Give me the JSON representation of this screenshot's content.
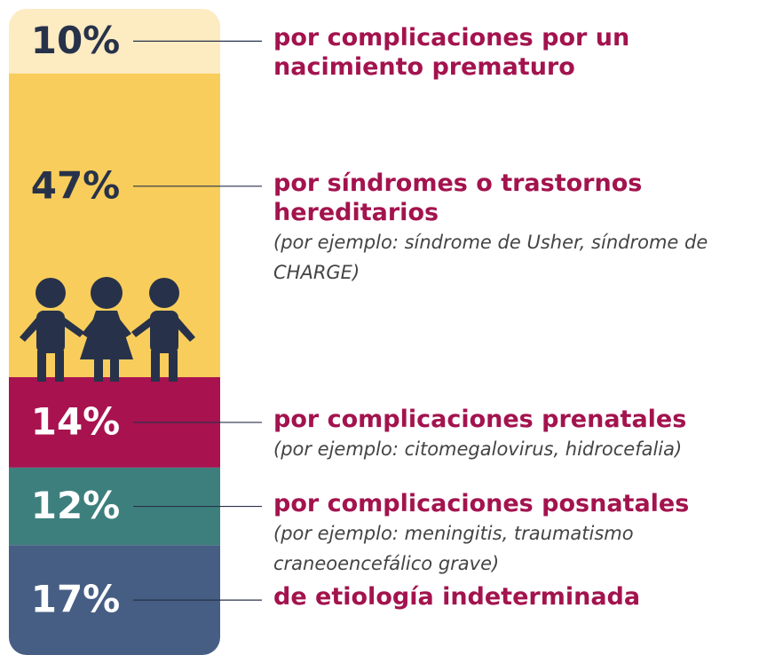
{
  "chart_data": {
    "type": "stacked-bar",
    "ylim": [
      0,
      100
    ],
    "series": [
      {
        "name": "por complicaciones por un nacimiento prematuro",
        "color": "#fdebc2",
        "values": [
          10
        ],
        "value_labels": [
          "10%"
        ]
      },
      {
        "name": "por síndromes o trastornos hereditarios",
        "detail": "(por ejemplo: síndrome de Usher, síndrome de CHARGE)",
        "color": "#f9cd5b",
        "values": [
          47
        ],
        "value_labels": [
          "47%"
        ]
      },
      {
        "name": "por complicaciones prenatales",
        "detail": "(por ejemplo: citomegalovirus, hidrocefalia)",
        "color": "#a8124f",
        "values": [
          14
        ],
        "value_labels": [
          "14%"
        ]
      },
      {
        "name": "por complicaciones posnatales",
        "detail": "(por ejemplo: meningitis, traumatismo craneoencefálico grave)",
        "color": "#3d7f7d",
        "values": [
          12
        ],
        "value_labels": [
          "12%"
        ]
      },
      {
        "name": "de etiología indeterminada",
        "color": "#465e84",
        "values": [
          17
        ],
        "value_labels": [
          "17%"
        ]
      }
    ]
  }
}
